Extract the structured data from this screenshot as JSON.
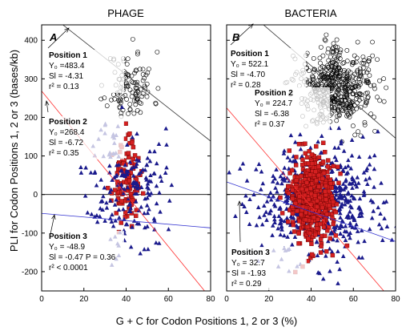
{
  "figure": {
    "ylabel": "PLI for Codon Positions 1, 2 or 3 (bases/kb)",
    "xlabel": "G + C for Codon Positions 1, 2 or 3 (%)"
  },
  "chart_data": [
    {
      "type": "scatter",
      "title": "PHAGE",
      "panel_letter": "A",
      "xlim": [
        0,
        80
      ],
      "ylim": [
        -250,
        440
      ],
      "xticks": [
        0,
        20,
        40,
        60,
        80
      ],
      "yticks": [
        -200,
        -100,
        0,
        100,
        200,
        300,
        400
      ],
      "series": [
        {
          "marker": "open-circle",
          "color": "#000000",
          "cluster": {
            "center": [
              42,
              280
            ],
            "sd": [
              5.5,
              45
            ],
            "n": 110,
            "seed": 11
          }
        },
        {
          "marker": "filled-square",
          "color": "#d42020",
          "cluster": {
            "center": [
              40,
              30
            ],
            "sd": [
              3.2,
              50
            ],
            "n": 110,
            "seed": 23
          }
        },
        {
          "marker": "filled-triangle",
          "color": "#1a1a8c",
          "cluster": {
            "center": [
              40,
              20
            ],
            "sd": [
              9,
              85
            ],
            "n": 190,
            "seed": 37
          }
        }
      ],
      "fits": [
        {
          "y0": 483.4,
          "slope": -4.31,
          "color": "#333333"
        },
        {
          "y0": 268.4,
          "slope": -6.72,
          "color": "#ff3030"
        },
        {
          "y0": -48.9,
          "slope": -0.47,
          "color": "#3030d0"
        }
      ],
      "annotations": [
        {
          "pos": "Position 1",
          "y0": "Y₀ =483.4",
          "sl": "Sl  = -4.31",
          "r2": "r² = 0.13"
        },
        {
          "pos": "Position 2",
          "y0": "Y₀ =268.4",
          "sl": "Sl  = -6.72",
          "r2": "r² = 0.35"
        },
        {
          "pos": "Position 3",
          "y0": "Y₀ = -48.9",
          "sl": "Sl = -0.47  P = 0.36",
          "r2": "r² < 0.0001"
        }
      ]
    },
    {
      "type": "scatter",
      "title": "BACTERIA",
      "panel_letter": "B",
      "xlim": [
        0,
        80
      ],
      "ylim": [
        -250,
        440
      ],
      "xticks": [
        0,
        20,
        40,
        60,
        80
      ],
      "series": [
        {
          "marker": "open-circle",
          "color": "#000000",
          "cluster": {
            "center": [
              52,
              280
            ],
            "sd": [
              9,
              50
            ],
            "n": 480,
            "seed": 41
          }
        },
        {
          "marker": "filled-triangle",
          "color": "#1a1a8c",
          "cluster": {
            "center": [
              44,
              -20
            ],
            "sd": [
              15,
              70
            ],
            "n": 620,
            "seed": 53
          }
        },
        {
          "marker": "filled-square",
          "color": "#d42020",
          "cluster": {
            "center": [
              40,
              -15
            ],
            "sd": [
              5,
              55
            ],
            "n": 520,
            "seed": 67
          }
        }
      ],
      "fits": [
        {
          "y0": 522.1,
          "slope": -4.7,
          "color": "#333333"
        },
        {
          "y0": 224.7,
          "slope": -6.38,
          "color": "#ff3030"
        },
        {
          "y0": 32.7,
          "slope": -1.93,
          "color": "#3030d0"
        }
      ],
      "annotations": [
        {
          "pos": "Position 1",
          "y0": "Y₀ = 522.1",
          "sl": "Sl  = -4.70",
          "r2": "r² = 0.28"
        },
        {
          "pos": "Position 2",
          "y0": "Y₀ = 224.7",
          "sl": "Sl  = -6.38",
          "r2": "r² = 0.37"
        },
        {
          "pos": "Position 3",
          "y0": "Y₀ = 32.7",
          "sl": "Sl = -1.93",
          "r2": "r² = 0.29"
        }
      ]
    }
  ]
}
